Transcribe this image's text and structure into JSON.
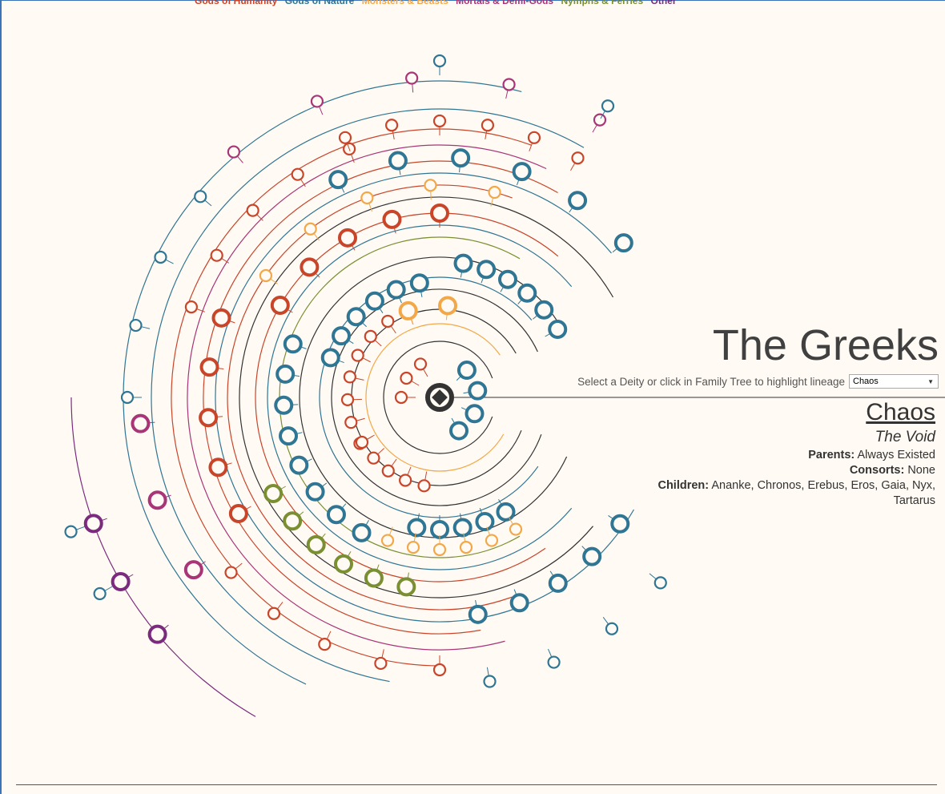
{
  "legend": {
    "items": [
      {
        "label": "Gods of Humanity",
        "color": "#c8452a"
      },
      {
        "label": "Gods of Nature",
        "color": "#2f7594"
      },
      {
        "label": "Monsters & Beasts",
        "color": "#f2a848"
      },
      {
        "label": "Mortals & Demi-Gods",
        "color": "#a83577"
      },
      {
        "label": "Nymphs & Ferries",
        "color": "#7a8f32"
      },
      {
        "label": "Other",
        "color": "#7b2b7e"
      }
    ]
  },
  "header": {
    "title": "The Greeks"
  },
  "selector": {
    "label": "Select a Deity or click in Family Tree to highlight lineage",
    "value": "Chaos"
  },
  "info": {
    "name": "Chaos",
    "epithet": "The Void",
    "parents_label": "Parents:",
    "parents_value": "Always Existed",
    "consorts_label": "Consorts:",
    "consorts_value": "None",
    "children_label": "Children:",
    "children_value": "Ananke, Chronos, Erebus, Eros, Gaia, Nyx, Tartarus"
  },
  "tree": {
    "root_color": "#333333",
    "line_color": "#333333"
  }
}
